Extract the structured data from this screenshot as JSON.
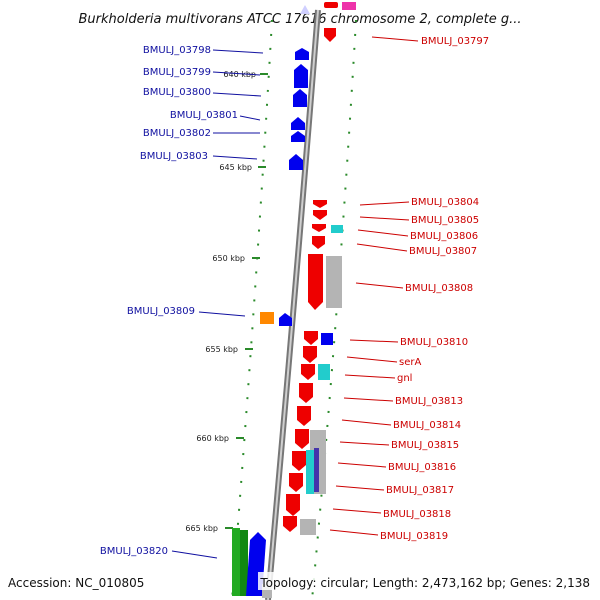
{
  "title": "Burkholderia multivorans ATCC 17616 chromosome 2, complete g...",
  "footer": {
    "accession": "Accession: NC_010805",
    "summary": "Topology: circular; Length: 2,473,162 bp; Genes: 2,138"
  },
  "colors": {
    "backbone": "#999999",
    "left_label": "#1010a0",
    "right_label": "#cc0000",
    "tick": "#2a8a2a",
    "forward_cds": "#0000ee",
    "reverse_cds": "#ee0000",
    "rna": "#22cccc",
    "other": "#aaaaaa",
    "orange_feature": "#ff8800",
    "green_feature": "#22aa22"
  },
  "ticks": [
    "640 kbp",
    "645 kbp",
    "650 kbp",
    "655 kbp",
    "660 kbp",
    "665 kbp"
  ],
  "left_labels": [
    "BMULJ_03798",
    "BMULJ_03799",
    "BMULJ_03800",
    "BMULJ_03801",
    "BMULJ_03802",
    "BMULJ_03803",
    "BMULJ_03809",
    "BMULJ_03820"
  ],
  "right_labels": [
    "BMULJ_03797",
    "BMULJ_03804",
    "BMULJ_03805",
    "BMULJ_03806",
    "BMULJ_03807",
    "BMULJ_03808",
    "BMULJ_03810",
    "serA",
    "gnl",
    "BMULJ_03813",
    "BMULJ_03814",
    "BMULJ_03815",
    "BMULJ_03816",
    "BMULJ_03817",
    "BMULJ_03818",
    "BMULJ_03819"
  ]
}
